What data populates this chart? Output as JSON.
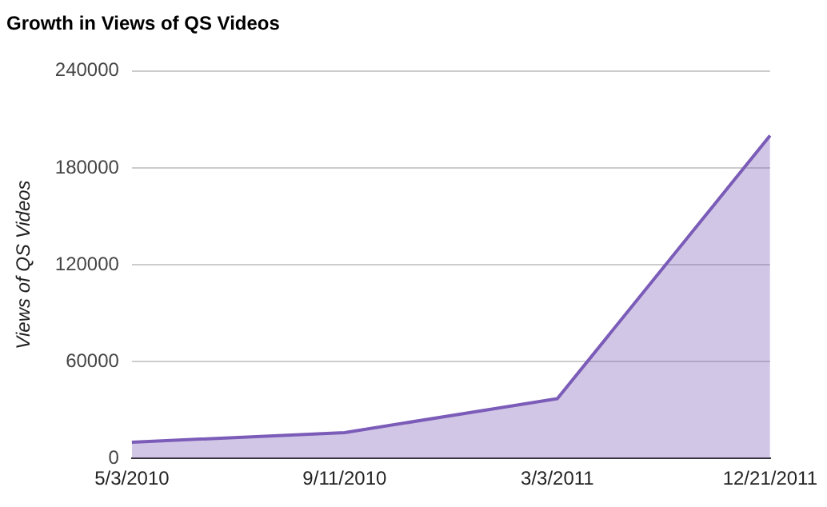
{
  "chart_data": {
    "type": "area",
    "title": "Growth in Views of QS Videos",
    "ylabel": "Views of QS Videos",
    "categories": [
      "5/3/2010",
      "9/11/2010",
      "3/3/2011",
      "12/21/2011"
    ],
    "series": [
      {
        "color": "#7b5cb8",
        "values": [
          10000,
          16000,
          37000,
          200000
        ]
      }
    ],
    "ylim": [
      0,
      240000
    ],
    "yticks": [
      0,
      60000,
      120000,
      180000,
      240000
    ],
    "grid": "y",
    "legend": false
  }
}
